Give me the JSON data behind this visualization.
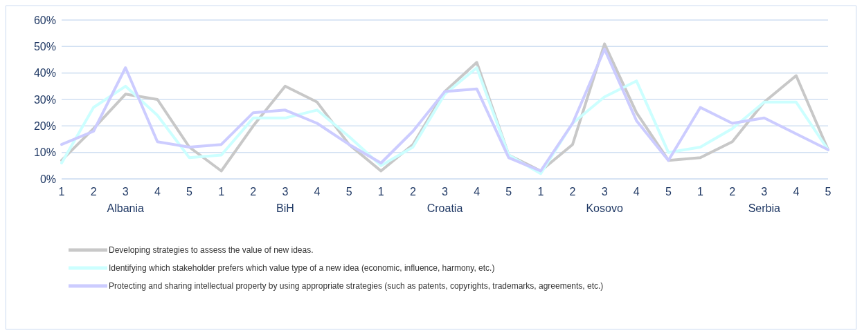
{
  "chart_data": {
    "type": "line",
    "categories": [
      "1",
      "2",
      "3",
      "4",
      "5",
      "1",
      "2",
      "3",
      "4",
      "5",
      "1",
      "2",
      "3",
      "4",
      "5",
      "1",
      "2",
      "3",
      "4",
      "5",
      "1",
      "2",
      "3",
      "4",
      "5"
    ],
    "annotations": [
      "Albania",
      "BiH",
      "Croatia",
      "Kosovo",
      "Serbia"
    ],
    "series": [
      {
        "name": "Developing strategies to assess the value of new ideas.",
        "color": "#c8c8c8",
        "values": [
          7,
          19,
          32,
          30,
          12,
          3,
          20,
          35,
          29,
          13,
          3,
          13,
          33,
          44,
          9,
          3,
          13,
          51,
          25,
          7,
          8,
          14,
          29,
          39,
          11
        ]
      },
      {
        "name": "Identifying which stakeholder prefers which value type of a new idea (economic, influence, harmony, etc.)",
        "color": "#ccffff",
        "values": [
          6,
          27,
          35,
          24,
          8,
          9,
          23,
          23,
          26,
          16,
          5,
          12,
          32,
          42,
          9,
          2,
          21,
          31,
          37,
          10,
          12,
          19,
          29,
          29,
          11
        ]
      },
      {
        "name": "Protecting and sharing intellectual property by using appropriate strategies (such as patents, copyrights, trademarks, agreements, etc.)",
        "color": "#ccccff",
        "values": [
          13,
          18,
          42,
          14,
          12,
          13,
          25,
          26,
          21,
          13,
          6,
          18,
          33,
          34,
          8,
          3,
          21,
          49,
          22,
          7,
          27,
          21,
          23,
          17,
          11
        ]
      }
    ],
    "ylim": [
      0,
      60
    ],
    "yticks": [
      {
        "value": 0,
        "label": "0%"
      },
      {
        "value": 10,
        "label": "10%"
      },
      {
        "value": 20,
        "label": "20%"
      },
      {
        "value": 30,
        "label": "30%"
      },
      {
        "value": 40,
        "label": "40%"
      },
      {
        "value": 50,
        "label": "50%"
      },
      {
        "value": 60,
        "label": "60%"
      }
    ],
    "grid": "y",
    "legend": "bottom",
    "marker": "none",
    "line_style": "solid"
  }
}
